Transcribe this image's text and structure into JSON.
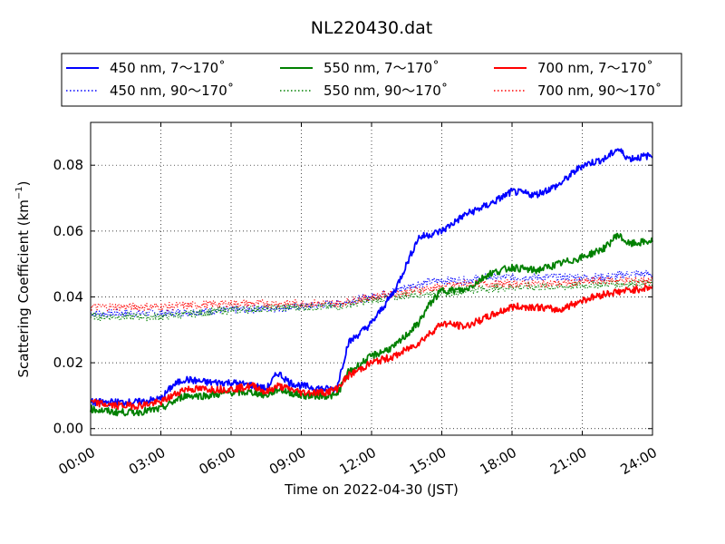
{
  "chart_data": {
    "type": "line",
    "title": "NL220430.dat",
    "xlabel": "Time on 2022-04-30 (JST)",
    "ylabel": "Scattering Coefficient (km",
    "ylabel_unit_exponent": "−1",
    "ylabel_close": ")",
    "xlim": [
      "00:00",
      "24:00"
    ],
    "ylim": [
      -0.002,
      0.093
    ],
    "x_ticks": [
      "00:00",
      "03:00",
      "06:00",
      "09:00",
      "12:00",
      "15:00",
      "18:00",
      "21:00",
      "24:00"
    ],
    "y_ticks": [
      "0.00",
      "0.02",
      "0.04",
      "0.06",
      "0.08"
    ],
    "grid": true,
    "legend_position": "top",
    "series": [
      {
        "name": "450 nm, 7～170˚",
        "color": "#0000ff",
        "style": "solid",
        "x": [
          "00:00",
          "01:00",
          "02:00",
          "03:00",
          "03:30",
          "04:00",
          "05:00",
          "06:00",
          "07:00",
          "07:30",
          "08:00",
          "08:30",
          "09:00",
          "10:00",
          "10:30",
          "11:00",
          "12:00",
          "13:00",
          "13:30",
          "14:00",
          "15:00",
          "16:00",
          "17:00",
          "18:00",
          "19:00",
          "20:00",
          "21:00",
          "22:00",
          "22:30",
          "23:00",
          "24:00"
        ],
        "y": [
          0.008,
          0.008,
          0.008,
          0.009,
          0.013,
          0.015,
          0.014,
          0.014,
          0.013,
          0.012,
          0.017,
          0.014,
          0.013,
          0.012,
          0.012,
          0.026,
          0.032,
          0.042,
          0.05,
          0.058,
          0.06,
          0.065,
          0.068,
          0.072,
          0.071,
          0.074,
          0.08,
          0.082,
          0.085,
          0.082,
          0.083
        ]
      },
      {
        "name": "450 nm, 90～170˚",
        "color": "#0000ff",
        "style": "dotted",
        "x": [
          "00:00",
          "03:00",
          "06:00",
          "09:00",
          "10:30",
          "12:00",
          "13:00",
          "14:00",
          "15:00",
          "16:00",
          "17:00",
          "18:00",
          "19:00",
          "20:00",
          "21:00",
          "22:00",
          "23:00",
          "24:00"
        ],
        "y": [
          0.035,
          0.035,
          0.036,
          0.037,
          0.038,
          0.04,
          0.042,
          0.044,
          0.045,
          0.045,
          0.046,
          0.046,
          0.046,
          0.046,
          0.046,
          0.046,
          0.047,
          0.047
        ]
      },
      {
        "name": "550 nm, 7～170˚",
        "color": "#008000",
        "style": "solid",
        "x": [
          "00:00",
          "01:00",
          "02:00",
          "03:00",
          "04:00",
          "05:00",
          "06:00",
          "07:00",
          "07:30",
          "08:00",
          "09:00",
          "10:00",
          "10:30",
          "11:00",
          "12:00",
          "13:00",
          "14:00",
          "14:30",
          "15:00",
          "16:00",
          "17:00",
          "18:00",
          "19:00",
          "20:00",
          "21:00",
          "22:00",
          "22:30",
          "23:00",
          "24:00"
        ],
        "y": [
          0.006,
          0.005,
          0.005,
          0.006,
          0.01,
          0.01,
          0.011,
          0.011,
          0.01,
          0.012,
          0.01,
          0.01,
          0.01,
          0.017,
          0.022,
          0.025,
          0.032,
          0.038,
          0.042,
          0.042,
          0.047,
          0.049,
          0.048,
          0.05,
          0.052,
          0.055,
          0.059,
          0.056,
          0.057
        ]
      },
      {
        "name": "550 nm, 90～170˚",
        "color": "#008000",
        "style": "dotted",
        "x": [
          "00:00",
          "03:00",
          "06:00",
          "09:00",
          "10:30",
          "12:00",
          "13:00",
          "14:00",
          "15:00",
          "16:00",
          "18:00",
          "20:00",
          "22:00",
          "24:00"
        ],
        "y": [
          0.034,
          0.034,
          0.036,
          0.037,
          0.037,
          0.039,
          0.04,
          0.041,
          0.041,
          0.042,
          0.043,
          0.043,
          0.044,
          0.044
        ]
      },
      {
        "name": "700 nm, 7～170˚",
        "color": "#ff0000",
        "style": "solid",
        "x": [
          "00:00",
          "01:00",
          "02:00",
          "03:00",
          "04:00",
          "05:00",
          "06:00",
          "07:00",
          "07:30",
          "08:00",
          "09:00",
          "10:00",
          "10:30",
          "11:00",
          "12:00",
          "13:00",
          "14:00",
          "15:00",
          "16:00",
          "17:00",
          "18:00",
          "19:00",
          "20:00",
          "21:00",
          "22:00",
          "23:00",
          "24:00"
        ],
        "y": [
          0.008,
          0.007,
          0.007,
          0.008,
          0.012,
          0.012,
          0.012,
          0.013,
          0.011,
          0.013,
          0.011,
          0.011,
          0.012,
          0.016,
          0.02,
          0.022,
          0.026,
          0.032,
          0.031,
          0.034,
          0.037,
          0.037,
          0.036,
          0.039,
          0.041,
          0.042,
          0.043
        ]
      },
      {
        "name": "700 nm, 90～170˚",
        "color": "#ff0000",
        "style": "dotted",
        "x": [
          "00:00",
          "03:00",
          "06:00",
          "09:00",
          "10:30",
          "12:00",
          "13:00",
          "14:00",
          "15:00",
          "16:00",
          "18:00",
          "20:00",
          "22:00",
          "24:00"
        ],
        "y": [
          0.037,
          0.037,
          0.038,
          0.038,
          0.038,
          0.04,
          0.041,
          0.042,
          0.043,
          0.044,
          0.044,
          0.044,
          0.045,
          0.045
        ]
      }
    ]
  }
}
